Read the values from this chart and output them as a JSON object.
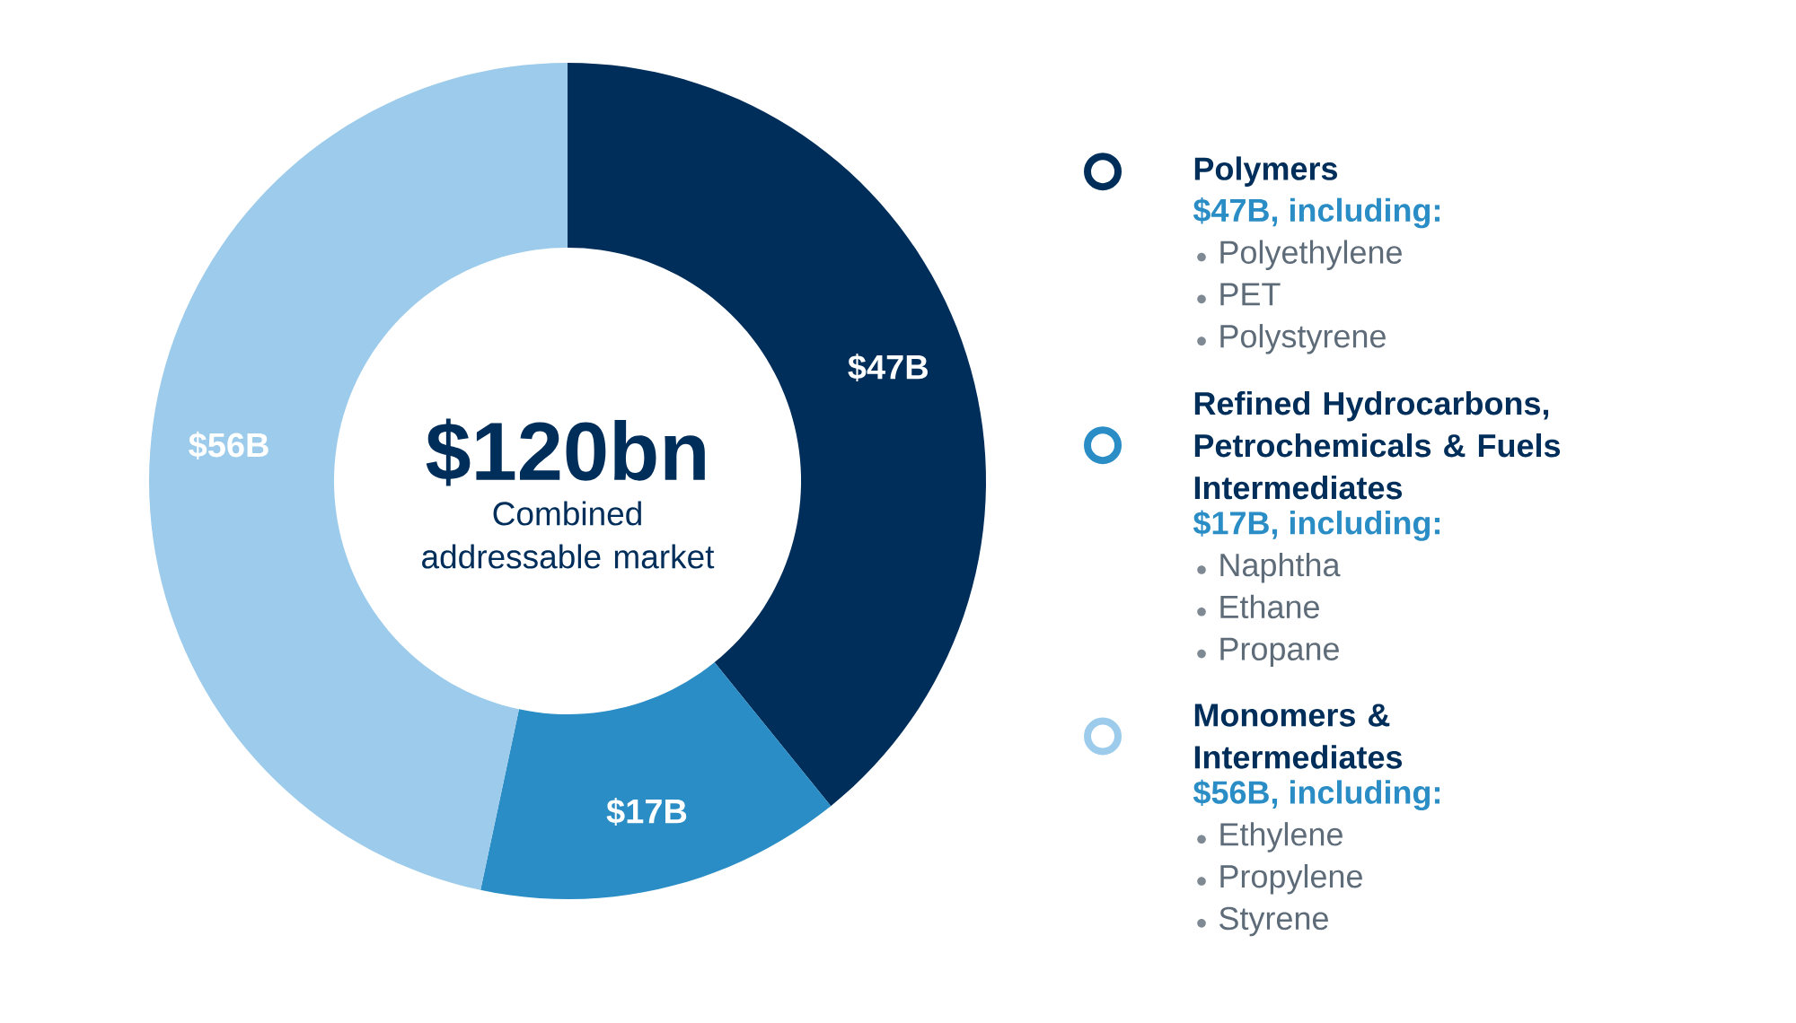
{
  "chart_data": {
    "type": "donut",
    "categories": [
      "Polymers",
      "Refined Hydrocarbons, Petrochemicals & Fuels Intermediates",
      "Monomers & Intermediates"
    ],
    "values": [
      47,
      17,
      56
    ],
    "colors": [
      "#002e5a",
      "#2a8dc5",
      "#9ccbeb"
    ],
    "value_labels": [
      "$47B",
      "$17B",
      "$56B"
    ],
    "legend": "right",
    "annotations": [
      "$120bn",
      "Combined addressable market",
      "$47B, including:",
      "Polyethylene",
      "PET",
      "Polystyrene",
      "$17B, including:",
      "Naphtha",
      "Ethane",
      "Propane",
      "$56B, including:",
      "Ethylene",
      "Propylene",
      "Styrene"
    ]
  }
}
